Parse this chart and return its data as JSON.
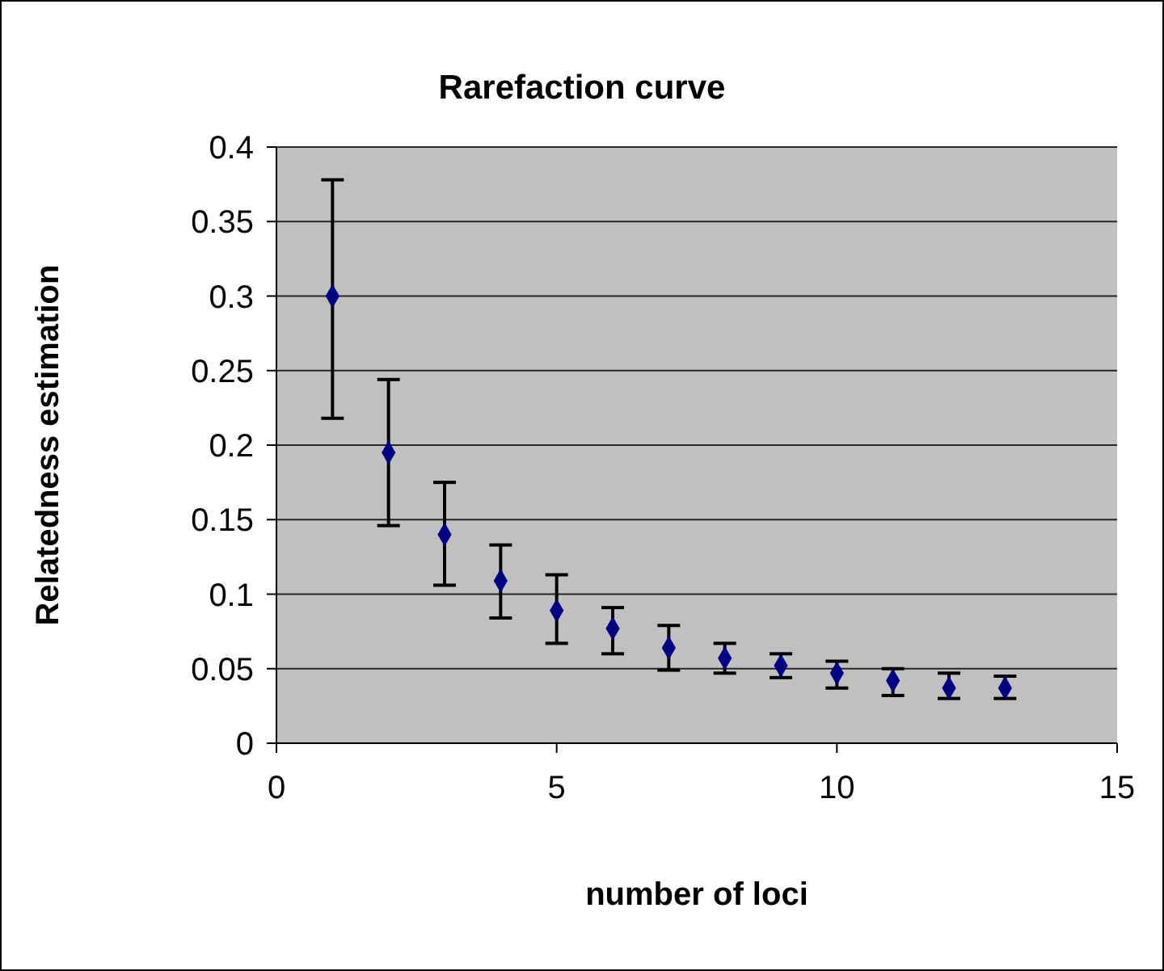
{
  "chart_data": {
    "type": "scatter",
    "title": "Rarefaction curve",
    "xlabel": "number of loci",
    "ylabel": "Relatedness estimation",
    "x": [
      1,
      2,
      3,
      4,
      5,
      6,
      7,
      8,
      9,
      10,
      11,
      12,
      13
    ],
    "values": [
      0.3,
      0.195,
      0.14,
      0.109,
      0.089,
      0.077,
      0.064,
      0.057,
      0.052,
      0.047,
      0.042,
      0.037,
      0.037
    ],
    "errors": [
      [
        0.218,
        0.378
      ],
      [
        0.146,
        0.244
      ],
      [
        0.106,
        0.175
      ],
      [
        0.084,
        0.133
      ],
      [
        0.067,
        0.113
      ],
      [
        0.06,
        0.091
      ],
      [
        0.049,
        0.079
      ],
      [
        0.047,
        0.067
      ],
      [
        0.044,
        0.06
      ],
      [
        0.037,
        0.055
      ],
      [
        0.032,
        0.05
      ],
      [
        0.03,
        0.047
      ],
      [
        0.03,
        0.045
      ]
    ],
    "color": "#000080",
    "marker": "diamond",
    "xlim": [
      0,
      15
    ],
    "xticks": [
      0,
      5,
      10,
      15
    ],
    "ylim": [
      0,
      0.4
    ],
    "yticks": [
      0,
      0.05,
      0.1,
      0.15,
      0.2,
      0.25,
      0.3,
      0.35,
      0.4
    ],
    "grid": "y"
  }
}
